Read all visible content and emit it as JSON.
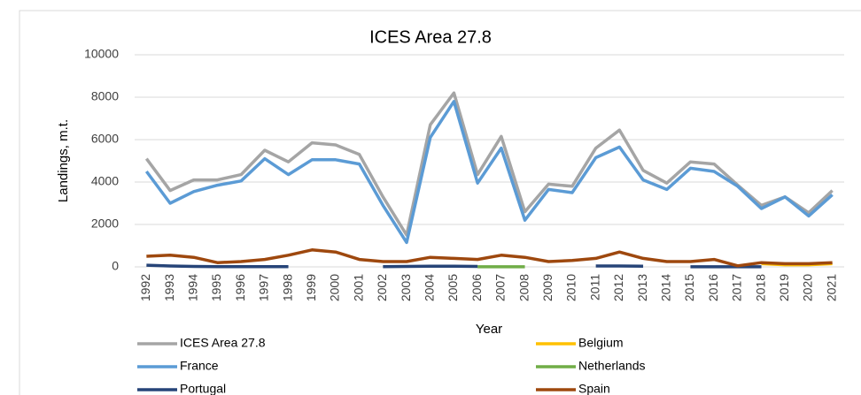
{
  "chart_data": {
    "type": "line",
    "title": "ICES Area 27.8",
    "x_label": "Year",
    "y_label": "Landings, m.t.",
    "categories": [
      "1992",
      "1993",
      "1994",
      "1995",
      "1996",
      "1997",
      "1998",
      "1999",
      "2000",
      "2001",
      "2002",
      "2003",
      "2004",
      "2005",
      "2006",
      "2007",
      "2008",
      "2009",
      "2010",
      "2011",
      "2012",
      "2013",
      "2014",
      "2015",
      "2016",
      "2017",
      "2018",
      "2019",
      "2020",
      "2021"
    ],
    "series": [
      {
        "name": "ICES Area 27.8",
        "color": "#a5a5a5",
        "values": [
          5100,
          3600,
          4100,
          4100,
          4350,
          5500,
          4950,
          5850,
          5750,
          5300,
          3300,
          1500,
          6700,
          8200,
          4350,
          6150,
          2600,
          3900,
          3800,
          5600,
          6450,
          4550,
          3950,
          4950,
          4850,
          3850,
          2900,
          3300,
          2550,
          3600
        ]
      },
      {
        "name": "Belgium",
        "color": "#ffc000",
        "values": [
          null,
          null,
          null,
          null,
          null,
          null,
          null,
          null,
          null,
          null,
          null,
          null,
          null,
          null,
          null,
          null,
          null,
          null,
          null,
          null,
          null,
          null,
          null,
          null,
          null,
          null,
          150,
          100,
          100,
          150
        ]
      },
      {
        "name": "France",
        "color": "#5b9bd5",
        "values": [
          4500,
          3000,
          3550,
          3850,
          4050,
          5100,
          4350,
          5050,
          5050,
          4850,
          2900,
          1150,
          6100,
          7800,
          3950,
          5600,
          2200,
          3650,
          3500,
          5150,
          5650,
          4100,
          3650,
          4650,
          4500,
          3800,
          2750,
          3300,
          2400,
          3400
        ]
      },
      {
        "name": "Netherlands",
        "color": "#70ad47",
        "values": [
          null,
          null,
          null,
          null,
          null,
          null,
          null,
          null,
          null,
          null,
          null,
          null,
          null,
          null,
          5,
          5,
          5,
          null,
          null,
          null,
          null,
          null,
          null,
          null,
          null,
          null,
          null,
          null,
          null,
          null
        ]
      },
      {
        "name": "Portugal",
        "color": "#264478",
        "values": [
          80,
          40,
          20,
          10,
          10,
          10,
          10,
          null,
          null,
          null,
          10,
          20,
          30,
          30,
          20,
          null,
          null,
          null,
          null,
          40,
          40,
          30,
          null,
          5,
          5,
          5,
          5,
          null,
          null,
          null
        ]
      },
      {
        "name": "Spain",
        "color": "#9e480e",
        "values": [
          500,
          550,
          450,
          200,
          250,
          350,
          550,
          800,
          700,
          350,
          250,
          250,
          450,
          400,
          350,
          550,
          450,
          250,
          300,
          400,
          700,
          400,
          250,
          250,
          350,
          50,
          200,
          150,
          150,
          200
        ]
      }
    ],
    "ylim": [
      0,
      10000
    ],
    "yticks": [
      0,
      2000,
      4000,
      6000,
      8000,
      10000
    ],
    "grid": true
  }
}
